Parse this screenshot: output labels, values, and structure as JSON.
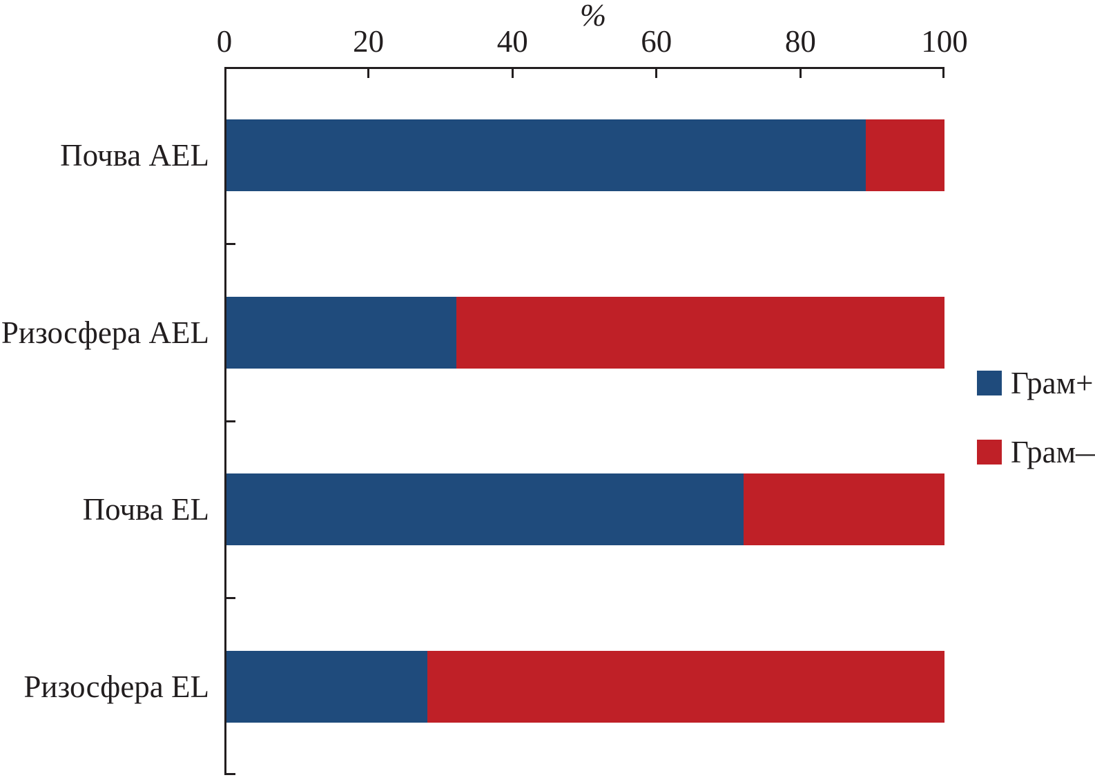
{
  "chart_data": {
    "type": "bar",
    "orientation": "horizontal",
    "stacked": true,
    "xlabel": "%",
    "axis_position": "top",
    "xlim": [
      0,
      100
    ],
    "x_ticks": [
      0,
      20,
      40,
      60,
      80,
      100
    ],
    "grid": false,
    "legend_position": "right",
    "axis_color": "#221e1f",
    "text_color": "#221e1f",
    "categories": [
      "Почва AEL",
      "Ризосфера AEL",
      "Почва EL",
      "Ризосфера EL"
    ],
    "series": [
      {
        "name": "Грам+",
        "color": "#1f4b7c",
        "values": [
          89,
          32,
          72,
          28
        ]
      },
      {
        "name": "Грам—",
        "color": "#bf2027",
        "values": [
          11,
          68,
          28,
          72
        ]
      }
    ]
  }
}
